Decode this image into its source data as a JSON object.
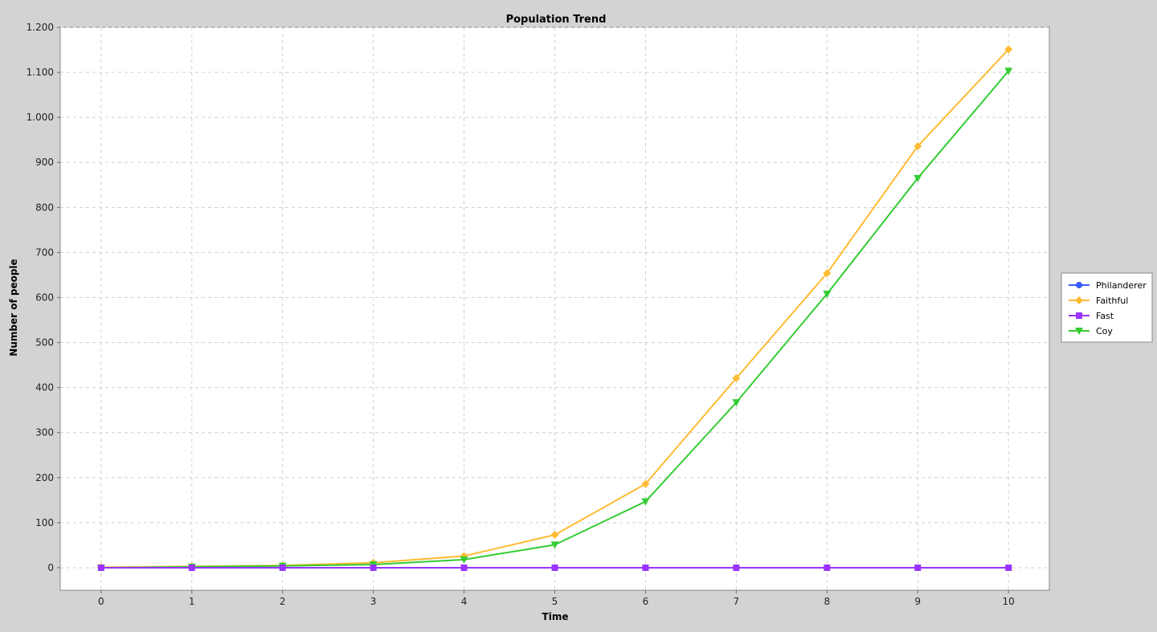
{
  "chart_data": {
    "type": "line",
    "title": "Population Trend",
    "xlabel": "Time",
    "ylabel": "Number of people",
    "x": [
      0,
      1,
      2,
      3,
      4,
      5,
      6,
      7,
      8,
      9,
      10
    ],
    "xlim": [
      -0.45,
      10.45
    ],
    "ylim": [
      -50,
      1200
    ],
    "yticks": [
      0,
      100,
      200,
      300,
      400,
      500,
      600,
      700,
      800,
      900,
      1000,
      1100,
      1200
    ],
    "ytick_labels": [
      "0",
      "100",
      "200",
      "300",
      "400",
      "500",
      "600",
      "700",
      "800",
      "900",
      "1.000",
      "1.100",
      "1.200"
    ],
    "grid": true,
    "legend_position": "right",
    "series": [
      {
        "name": "Philanderer",
        "color": "#3a5bff",
        "marker": "circle",
        "values": [
          0,
          0,
          0,
          0,
          0,
          0,
          0,
          0,
          0,
          0,
          0
        ]
      },
      {
        "name": "Faithful",
        "color": "#ffbb33",
        "marker": "diamond",
        "values": [
          1,
          3,
          5,
          11,
          26,
          73,
          186,
          421,
          654,
          936,
          1151
        ]
      },
      {
        "name": "Fast",
        "color": "#9933ff",
        "marker": "square",
        "values": [
          0,
          0,
          0,
          0,
          0,
          0,
          0,
          0,
          0,
          0,
          0
        ]
      },
      {
        "name": "Coy",
        "color": "#33cc33",
        "marker": "triangle-down",
        "values": [
          0,
          2,
          4,
          7,
          18,
          51,
          147,
          367,
          608,
          865,
          1103
        ]
      }
    ]
  }
}
